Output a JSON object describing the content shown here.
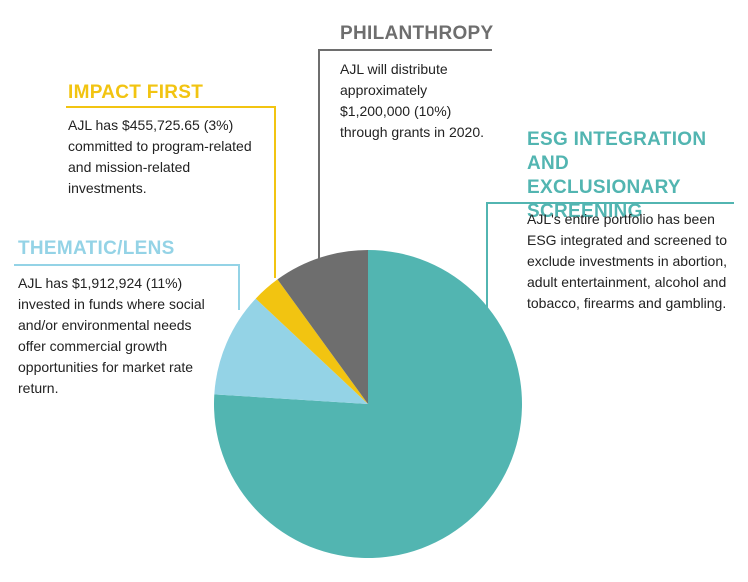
{
  "chart_data": {
    "type": "pie",
    "slices": [
      {
        "label": "ESG INTEGRATION AND EXCLUSIONARY SCREENING",
        "color": "#52b5b1",
        "text": "AJL's entire portfolio has been ESG integrated and screened to exclude investments in abortion, adult entertainment, alcohol and tobacco, firearms and gambling."
      },
      {
        "label": "THEMATIC/LENS",
        "value": 11,
        "color": "#94d3e6",
        "text": "AJL has $1,912,924 (11%) invested in funds where social and/or environmental needs offer commercial growth opportunities for market rate return."
      },
      {
        "label": "IMPACT FIRST",
        "value": 3,
        "color": "#f2c411",
        "text": "AJL has $455,725.65 (3%) committed to program-related and mission-related investments."
      },
      {
        "label": "PHILANTHROPY",
        "value": 10,
        "color": "#6e6e6e",
        "text": "AJL will distribute approximately $1,200,000 (10%) through grants in 2020."
      }
    ]
  }
}
